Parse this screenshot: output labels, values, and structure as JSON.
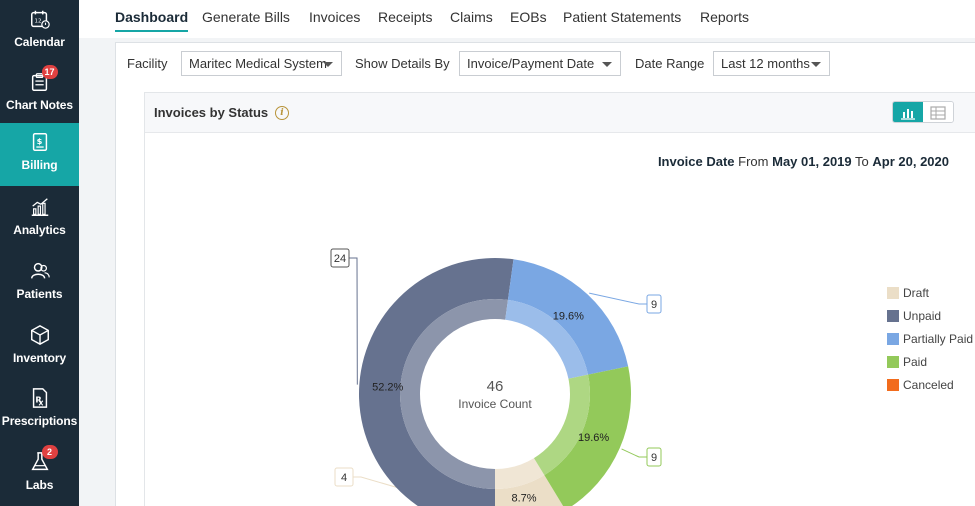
{
  "sidebar": {
    "items": [
      {
        "label": "Calendar",
        "icon": "calendar-icon",
        "badge": "",
        "active": false
      },
      {
        "label": "Chart Notes",
        "icon": "chart-notes-icon",
        "badge": "17",
        "active": false
      },
      {
        "label": "Billing",
        "icon": "billing-icon",
        "badge": "",
        "active": true
      },
      {
        "label": "Analytics",
        "icon": "analytics-icon",
        "badge": "",
        "active": false
      },
      {
        "label": "Patients",
        "icon": "patients-icon",
        "badge": "",
        "active": false
      },
      {
        "label": "Inventory",
        "icon": "inventory-icon",
        "badge": "",
        "active": false
      },
      {
        "label": "Prescriptions",
        "icon": "prescriptions-icon",
        "badge": "",
        "active": false
      },
      {
        "label": "Labs",
        "icon": "labs-icon",
        "badge": "2",
        "active": false
      }
    ]
  },
  "tabs": [
    {
      "label": "Dashboard",
      "active": true
    },
    {
      "label": "Generate Bills",
      "active": false
    },
    {
      "label": "Invoices",
      "active": false
    },
    {
      "label": "Receipts",
      "active": false
    },
    {
      "label": "Claims",
      "active": false
    },
    {
      "label": "EOBs",
      "active": false
    },
    {
      "label": "Patient Statements",
      "active": false
    },
    {
      "label": "Reports",
      "active": false
    }
  ],
  "filters": {
    "facility_label": "Facility",
    "facility_value": "Maritec Medical System",
    "details_label": "Show Details By",
    "details_value": "Invoice/Payment Date",
    "range_label": "Date Range",
    "range_value": "Last 12 months"
  },
  "panel": {
    "title": "Invoices by Status",
    "date_prefix": "Invoice Date",
    "from_word": "From",
    "from_date": "May 01, 2019",
    "to_word": "To",
    "to_date": "Apr 20, 2020"
  },
  "colors": {
    "accent": "#16a6a6",
    "sidebar_bg": "#1b2b38",
    "draft": "#ebdec7",
    "unpaid": "#66728f",
    "partially_paid": "#7aa7e3",
    "paid": "#93c95a",
    "canceled": "#f26c1d"
  },
  "chart_data": {
    "type": "pie",
    "center_value": "46",
    "center_label": "Invoice Count",
    "total": 46,
    "categories": [
      "Draft",
      "Unpaid",
      "Partially Paid",
      "Paid",
      "Canceled"
    ],
    "values": [
      4,
      24,
      9,
      9,
      0
    ],
    "percent_labels": [
      "8.7%",
      "52.2%",
      "19.6%",
      "19.6%",
      ""
    ],
    "count_labels": [
      "4",
      "24",
      "9",
      "9",
      ""
    ],
    "legend_position": "right"
  }
}
